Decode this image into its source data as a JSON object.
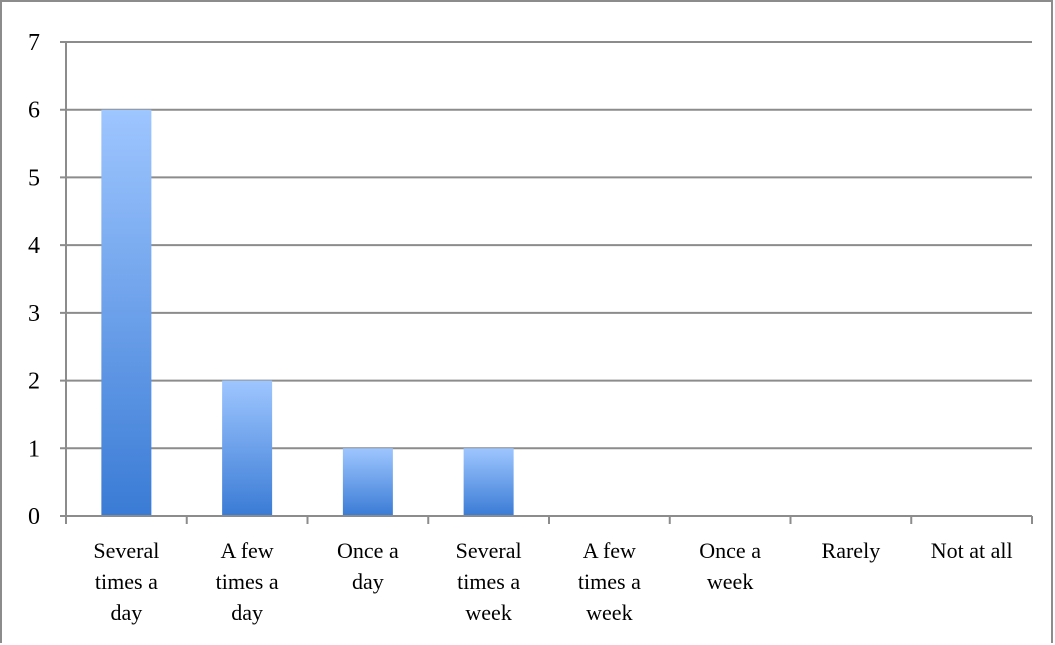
{
  "chart_data": {
    "type": "bar",
    "categories": [
      [
        "Several",
        "times a",
        "day"
      ],
      [
        "A few",
        "times a",
        "day"
      ],
      [
        "Once a",
        "day"
      ],
      [
        "Several",
        "times a",
        "week"
      ],
      [
        "A few",
        "times a",
        "week"
      ],
      [
        "Once a",
        "week"
      ],
      [
        "Rarely"
      ],
      [
        "Not at all"
      ]
    ],
    "values": [
      6,
      2,
      1,
      1,
      0,
      0,
      0,
      0
    ],
    "yticks": [
      "0",
      "1",
      "2",
      "3",
      "4",
      "5",
      "6",
      "7"
    ],
    "ylim": [
      0,
      7
    ],
    "title": "",
    "xlabel": "",
    "ylabel": "",
    "grid": true,
    "legend": "none",
    "bar_color_top": "#9ec6ff",
    "bar_color_bottom": "#3a7bd5",
    "gridline_color": "#8c8c8c"
  }
}
